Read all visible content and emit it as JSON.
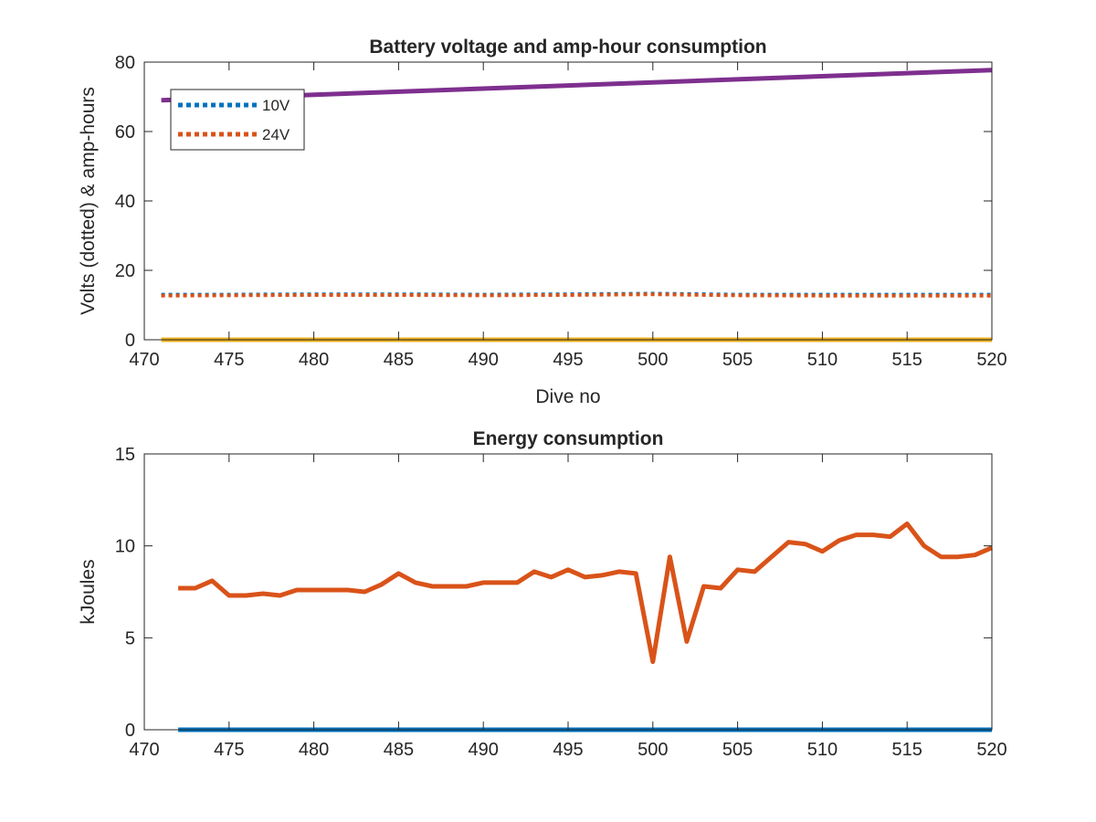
{
  "chart_data": [
    {
      "type": "line",
      "title": "Battery voltage and amp-hour consumption",
      "xlabel": "Dive no",
      "ylabel": "Volts (dotted) & amp-hours",
      "xlim": [
        470,
        520
      ],
      "ylim": [
        0,
        80
      ],
      "xticks": [
        470,
        475,
        480,
        485,
        490,
        495,
        500,
        505,
        510,
        515,
        520
      ],
      "yticks": [
        0,
        20,
        40,
        60,
        80
      ],
      "grid": false,
      "legend": {
        "location": "top-left",
        "entries": [
          "10V",
          "24V"
        ]
      },
      "series": [
        {
          "name": "10V",
          "style": "dotted",
          "color": "#0072BD",
          "x": [
            471,
            475,
            480,
            485,
            490,
            495,
            500,
            505,
            510,
            515,
            520
          ],
          "y": [
            13.0,
            13.0,
            13.1,
            13.1,
            13.0,
            13.1,
            13.3,
            13.0,
            13.0,
            13.0,
            13.0
          ]
        },
        {
          "name": "24V",
          "style": "dotted",
          "color": "#D95319",
          "x": [
            471,
            475,
            480,
            485,
            490,
            495,
            500,
            505,
            510,
            515,
            520
          ],
          "y": [
            12.7,
            12.8,
            12.9,
            12.9,
            12.8,
            12.9,
            13.1,
            12.8,
            12.7,
            12.7,
            12.7
          ]
        },
        {
          "style": "solid",
          "color": "#7E2F8E",
          "x": [
            471,
            520
          ],
          "y": [
            69.0,
            77.7
          ]
        },
        {
          "style": "solid",
          "color": "#EDB120",
          "x": [
            471,
            520
          ],
          "y": [
            0,
            0
          ]
        }
      ]
    },
    {
      "type": "line",
      "title": "Energy consumption",
      "xlabel": "",
      "ylabel": "kJoules",
      "xlim": [
        470,
        520
      ],
      "ylim": [
        0,
        15
      ],
      "xticks": [
        470,
        475,
        480,
        485,
        490,
        495,
        500,
        505,
        510,
        515,
        520
      ],
      "yticks": [
        0,
        5,
        10,
        15
      ],
      "grid": false,
      "series": [
        {
          "style": "solid",
          "color": "#D95319",
          "x": [
            472,
            473,
            474,
            475,
            476,
            477,
            478,
            479,
            480,
            481,
            482,
            483,
            484,
            485,
            486,
            487,
            488,
            489,
            490,
            491,
            492,
            493,
            494,
            495,
            496,
            497,
            498,
            499,
            500,
            501,
            502,
            503,
            504,
            505,
            506,
            507,
            508,
            509,
            510,
            511,
            512,
            513,
            514,
            515,
            516,
            517,
            518,
            519,
            520
          ],
          "y": [
            7.7,
            7.7,
            8.1,
            7.3,
            7.3,
            7.4,
            7.3,
            7.6,
            7.6,
            7.6,
            7.6,
            7.5,
            7.9,
            8.5,
            8.0,
            7.8,
            7.8,
            7.8,
            8.0,
            8.0,
            8.0,
            8.6,
            8.3,
            8.7,
            8.3,
            8.4,
            8.6,
            8.5,
            3.7,
            9.4,
            4.8,
            7.8,
            7.7,
            8.7,
            8.6,
            9.4,
            10.2,
            10.1,
            9.7,
            10.3,
            10.6,
            10.6,
            10.5,
            11.2,
            10.0,
            9.4,
            9.4,
            9.5,
            9.9
          ]
        },
        {
          "style": "solid",
          "color": "#0072BD",
          "x": [
            472,
            520
          ],
          "y": [
            0,
            0
          ]
        }
      ]
    }
  ]
}
